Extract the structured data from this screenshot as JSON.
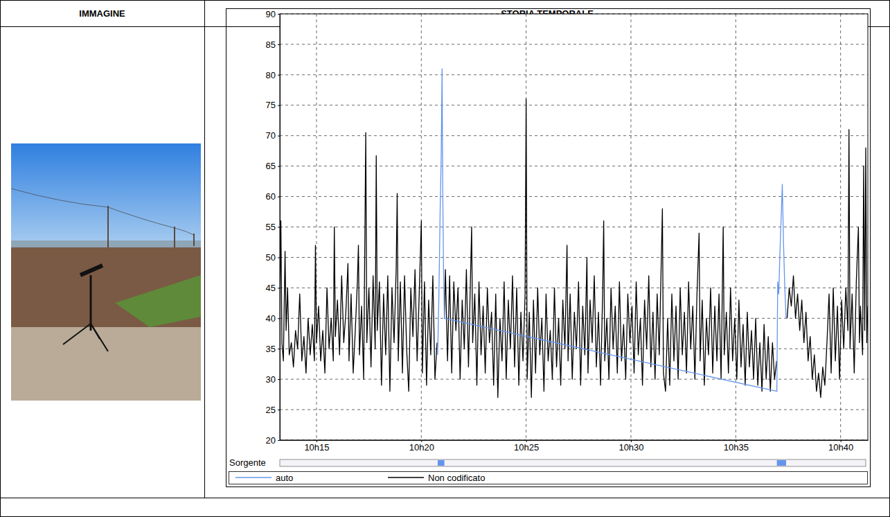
{
  "table": {
    "headers": [
      "IMMAGINE",
      "STORIA TEMPORALE"
    ]
  },
  "chart_data": {
    "type": "line",
    "xlim": [
      613.25,
      641.3
    ],
    "xticks": [
      {
        "value": 615,
        "label": "10h15"
      },
      {
        "value": 620,
        "label": "10h20"
      },
      {
        "value": 625,
        "label": "10h25"
      },
      {
        "value": 630,
        "label": "10h30"
      },
      {
        "value": 635,
        "label": "10h35"
      },
      {
        "value": 640,
        "label": "10h40"
      }
    ],
    "ylim": [
      20,
      90
    ],
    "yticks": [
      20,
      25,
      30,
      35,
      40,
      45,
      50,
      55,
      60,
      65,
      70,
      75,
      80,
      85,
      90
    ],
    "grid": true,
    "legend": "bottom",
    "source_label": "Sorgente",
    "source_segments": [
      [
        620.78,
        621.1
      ],
      [
        636.96,
        637.4
      ]
    ],
    "series": [
      {
        "name": "auto",
        "color": "#6495ed",
        "x": [
          620.78,
          620.84,
          620.9,
          620.95,
          620.99,
          621.02,
          621.06,
          621.1,
          636.96,
          637.0,
          637.05,
          637.1,
          637.16,
          637.22,
          637.28,
          637.34,
          637.4
        ],
        "values": [
          34,
          44,
          58,
          67,
          81,
          62,
          48,
          40,
          28,
          46,
          44,
          50,
          56,
          62,
          52,
          45,
          40
        ]
      },
      {
        "name": "Non codificato",
        "color": "#000000",
        "x": [
          613.25,
          613.3,
          613.35,
          613.42,
          613.5,
          613.55,
          613.62,
          613.7,
          613.8,
          613.9,
          614.0,
          614.1,
          614.2,
          614.3,
          614.4,
          614.5,
          614.6,
          614.7,
          614.8,
          614.9,
          614.95,
          615.0,
          615.1,
          615.2,
          615.3,
          615.4,
          615.5,
          615.6,
          615.7,
          615.8,
          615.85,
          615.9,
          616.0,
          616.1,
          616.2,
          616.3,
          616.4,
          616.5,
          616.55,
          616.65,
          616.75,
          616.85,
          616.95,
          617.0,
          617.05,
          617.15,
          617.25,
          617.35,
          617.4,
          617.5,
          617.6,
          617.7,
          617.8,
          617.85,
          617.9,
          618.0,
          618.1,
          618.2,
          618.3,
          618.4,
          618.5,
          618.6,
          618.7,
          618.8,
          618.85,
          618.9,
          619.0,
          619.1,
          619.2,
          619.3,
          619.4,
          619.5,
          619.6,
          619.7,
          619.8,
          619.9,
          620.0,
          620.05,
          620.15,
          620.25,
          620.35,
          620.45,
          620.55,
          620.65,
          620.75,
          620.9,
          621.1,
          621.15,
          621.25,
          621.35,
          621.45,
          621.55,
          621.65,
          621.75,
          621.85,
          621.95,
          622.05,
          622.15,
          622.25,
          622.4,
          622.45,
          622.55,
          622.65,
          622.75,
          622.85,
          622.95,
          623.05,
          623.15,
          623.25,
          623.35,
          623.45,
          623.55,
          623.65,
          623.75,
          623.85,
          623.95,
          624.05,
          624.15,
          624.25,
          624.35,
          624.45,
          624.55,
          624.65,
          624.75,
          624.85,
          624.95,
          625.0,
          625.05,
          625.15,
          625.25,
          625.35,
          625.45,
          625.55,
          625.65,
          625.75,
          625.85,
          625.95,
          626.05,
          626.15,
          626.25,
          626.35,
          626.45,
          626.55,
          626.65,
          626.75,
          626.85,
          626.95,
          627.0,
          627.1,
          627.2,
          627.3,
          627.4,
          627.5,
          627.6,
          627.7,
          627.8,
          627.9,
          627.95,
          628.05,
          628.15,
          628.25,
          628.35,
          628.45,
          628.55,
          628.65,
          628.7,
          628.75,
          628.85,
          628.95,
          629.05,
          629.15,
          629.25,
          629.35,
          629.45,
          629.55,
          629.65,
          629.75,
          629.85,
          629.95,
          630.05,
          630.15,
          630.25,
          630.35,
          630.45,
          630.55,
          630.65,
          630.75,
          630.85,
          630.95,
          631.05,
          631.15,
          631.25,
          631.35,
          631.5,
          631.55,
          631.65,
          631.75,
          631.85,
          631.95,
          632.05,
          632.15,
          632.25,
          632.35,
          632.45,
          632.55,
          632.65,
          632.75,
          632.85,
          632.95,
          633.05,
          633.15,
          633.25,
          633.3,
          633.4,
          633.5,
          633.6,
          633.7,
          633.8,
          633.9,
          634.0,
          634.1,
          634.2,
          634.3,
          634.4,
          634.45,
          634.55,
          634.65,
          634.75,
          634.85,
          634.95,
          635.05,
          635.15,
          635.25,
          635.35,
          635.45,
          635.55,
          635.65,
          635.75,
          635.85,
          635.95,
          636.05,
          636.15,
          636.25,
          636.35,
          636.45,
          636.55,
          636.65,
          636.75,
          636.85,
          636.95,
          637.15,
          637.45,
          637.55,
          637.65,
          637.75,
          637.85,
          637.95,
          638.05,
          638.15,
          638.25,
          638.35,
          638.45,
          638.55,
          638.65,
          638.75,
          638.85,
          638.95,
          639.05,
          639.15,
          639.25,
          639.35,
          639.45,
          639.55,
          639.65,
          639.75,
          639.85,
          639.95,
          640.05,
          640.15,
          640.25,
          640.35,
          640.4,
          640.45,
          640.55,
          640.65,
          640.75,
          640.85,
          640.9,
          640.95,
          641.05,
          641.1,
          641.15,
          641.2,
          641.25,
          641.3
        ],
        "values": [
          42,
          56,
          36,
          33,
          51,
          38,
          45,
          34,
          36,
          32,
          38,
          35,
          44,
          33,
          37,
          31,
          40,
          34,
          39,
          33,
          52,
          36,
          42,
          33,
          38,
          31,
          45,
          35,
          40,
          33,
          55,
          37,
          43,
          34,
          47,
          36,
          41,
          49,
          33,
          44,
          31,
          38,
          46,
          52,
          34,
          42,
          30,
          70.5,
          36,
          45,
          32,
          47,
          35,
          66.7,
          38,
          46,
          29,
          44,
          34,
          47,
          28,
          45,
          36,
          48,
          60.5,
          33,
          46,
          31,
          47,
          35,
          28,
          45,
          37,
          48,
          33,
          44,
          56,
          31,
          46,
          29,
          43,
          34,
          47,
          30,
          36,
          null,
          40,
          48,
          33,
          47,
          31,
          46,
          38,
          45,
          30,
          43,
          35,
          48,
          32,
          55,
          36,
          44,
          29,
          46,
          34,
          42,
          31,
          45,
          36,
          41,
          29,
          44,
          27,
          40,
          33,
          46,
          30,
          43,
          35,
          47,
          32,
          45,
          29,
          41,
          33,
          44,
          76,
          30,
          41,
          27,
          43,
          31,
          45,
          34,
          40,
          28,
          44,
          33,
          38,
          30,
          45,
          32,
          40,
          29,
          43,
          35,
          52,
          33,
          44,
          30,
          41,
          35,
          46,
          29,
          42,
          34,
          50,
          31,
          43,
          36,
          47,
          32,
          41,
          29,
          44,
          56,
          33,
          40,
          30,
          45,
          35,
          42,
          31,
          46,
          33,
          39,
          30,
          44,
          36,
          42,
          31,
          46,
          34,
          40,
          29,
          43,
          35,
          47,
          32,
          41,
          30,
          44,
          34,
          58,
          31,
          28,
          40,
          29,
          44,
          33,
          42,
          30,
          45,
          34,
          41,
          31,
          46,
          35,
          42,
          30,
          44,
          54,
          33,
          43,
          29,
          40,
          34,
          45,
          31,
          42,
          33,
          44,
          30,
          55,
          34,
          41,
          31,
          45,
          33,
          40,
          30,
          43,
          32,
          39,
          29,
          41,
          32,
          38,
          30,
          40,
          29,
          36,
          28,
          39,
          30,
          37,
          28,
          36,
          30,
          33,
          null,
          40,
          45,
          42,
          47,
          40,
          44,
          38,
          43,
          36,
          41,
          33,
          37,
          30,
          34,
          28,
          31,
          27,
          32,
          29,
          36,
          44,
          31,
          45,
          33,
          42,
          30,
          43,
          35,
          45,
          38,
          71,
          35,
          44,
          31,
          46,
          55,
          36,
          42,
          34,
          65,
          38,
          68,
          36,
          42
        ]
      }
    ]
  }
}
